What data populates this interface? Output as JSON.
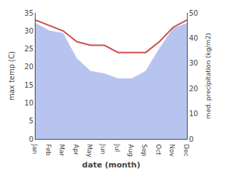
{
  "chart_data": {
    "type": "line",
    "categories": [
      "Jan",
      "Feb",
      "Mar",
      "Apr",
      "May",
      "Jun",
      "Jul",
      "Aug",
      "Sep",
      "Oct",
      "Nov",
      "Dec"
    ],
    "series": [
      {
        "type": "line",
        "color": "#cd4a4a",
        "values": [
          33,
          31.5,
          30,
          27,
          26,
          26,
          24,
          24,
          24,
          27,
          31,
          33
        ]
      },
      {
        "type": "area",
        "axis": "y2",
        "color": "#b8c4f0",
        "values": [
          46,
          43,
          42,
          32,
          27,
          26,
          24,
          24,
          27,
          36,
          44,
          46
        ]
      }
    ],
    "xlabel": "date (month)",
    "ylabel": "max temp (C)",
    "y2label": "med. precipitation (kg/m2)",
    "ylim": [
      0,
      35
    ],
    "yticks": [
      0,
      5,
      10,
      15,
      20,
      25,
      30,
      35
    ],
    "y2lim": [
      0,
      50
    ],
    "y2ticks": [
      0,
      10,
      20,
      30,
      40,
      50
    ],
    "grid": false
  }
}
